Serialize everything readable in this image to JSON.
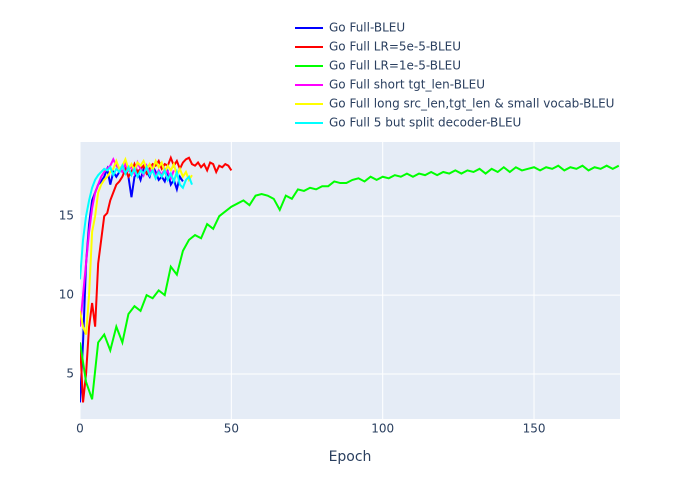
{
  "chart_data": {
    "type": "line",
    "x_label": "Epoch",
    "xlim": [
      0,
      178.4
    ],
    "ylim": [
      2.15,
      19.7
    ],
    "xticks": [
      0,
      50,
      100,
      150
    ],
    "yticks": [
      5,
      10,
      15
    ],
    "grid": true,
    "legend": "top",
    "series": [
      {
        "name": "Go Full-BLEU",
        "color": "#0000ff",
        "x": [
          0,
          1,
          2,
          3,
          4,
          5,
          6,
          7,
          8,
          9,
          10,
          11,
          12,
          13,
          14,
          15,
          16,
          17,
          18,
          19,
          20,
          21,
          22,
          23,
          24,
          25,
          26,
          27,
          28,
          29,
          30,
          31,
          32,
          33,
          34
        ],
        "values": [
          3.2,
          7,
          12,
          14.5,
          16,
          16.5,
          17,
          17.2,
          17.5,
          18,
          17,
          17.8,
          17.5,
          17.8,
          18.2,
          18,
          17.5,
          16.2,
          17.5,
          17.8,
          17.3,
          18,
          17.8,
          17.5,
          18.2,
          17.8,
          17.3,
          17.5,
          17.2,
          17.8,
          17,
          17.3,
          16.7,
          17.5,
          17.2
        ]
      },
      {
        "name": "Go Full LR=5e-5-BLEU",
        "color": "#ff0000",
        "x": [
          0,
          1,
          2,
          3,
          4,
          5,
          6,
          7,
          8,
          9,
          10,
          11,
          12,
          13,
          14,
          15,
          16,
          17,
          18,
          19,
          20,
          21,
          22,
          23,
          24,
          25,
          26,
          27,
          28,
          29,
          30,
          31,
          32,
          33,
          34,
          35,
          36,
          37,
          38,
          39,
          40,
          41,
          42,
          43,
          44,
          45,
          46,
          47,
          48,
          49,
          50
        ],
        "values": [
          7,
          3.2,
          5,
          8,
          9.5,
          8,
          12,
          13.5,
          15,
          15.2,
          16,
          16.5,
          17,
          17.2,
          17.5,
          18,
          17.5,
          17.8,
          18.3,
          17.8,
          18,
          18.2,
          17.7,
          18,
          18.3,
          18.2,
          18.5,
          18,
          18.3,
          18.2,
          18.7,
          18.2,
          18.5,
          18,
          18.4,
          18.6,
          18.7,
          18.3,
          18.2,
          18.4,
          18.1,
          18.3,
          17.9,
          18.4,
          18.3,
          17.8,
          18.2,
          18.1,
          18.3,
          18.2,
          17.9
        ]
      },
      {
        "name": "Go Full LR=1e-5-BLEU",
        "color": "#00ff00",
        "x": [
          0,
          2,
          4,
          6,
          8,
          10,
          12,
          14,
          16,
          18,
          20,
          22,
          24,
          26,
          28,
          30,
          32,
          34,
          36,
          38,
          40,
          42,
          44,
          46,
          48,
          50,
          52,
          54,
          56,
          58,
          60,
          62,
          64,
          66,
          68,
          70,
          72,
          74,
          76,
          78,
          80,
          82,
          84,
          86,
          88,
          90,
          92,
          94,
          96,
          98,
          100,
          102,
          104,
          106,
          108,
          110,
          112,
          114,
          116,
          118,
          120,
          122,
          124,
          126,
          128,
          130,
          132,
          134,
          136,
          138,
          140,
          142,
          144,
          146,
          148,
          150,
          152,
          154,
          156,
          158,
          160,
          162,
          164,
          166,
          168,
          170,
          172,
          174,
          176,
          178
        ],
        "values": [
          7,
          4.5,
          3.4,
          7,
          7.5,
          6.5,
          8,
          7,
          8.8,
          9.3,
          9,
          10,
          9.8,
          10.3,
          10,
          11.8,
          11.3,
          12.8,
          13.5,
          13.8,
          13.6,
          14.5,
          14.2,
          15,
          15.3,
          15.6,
          15.8,
          16,
          15.7,
          16.3,
          16.4,
          16.3,
          16.1,
          15.4,
          16.3,
          16.1,
          16.7,
          16.6,
          16.8,
          16.7,
          16.9,
          16.9,
          17.2,
          17.1,
          17.1,
          17.3,
          17.4,
          17.2,
          17.5,
          17.3,
          17.5,
          17.4,
          17.6,
          17.5,
          17.7,
          17.5,
          17.7,
          17.6,
          17.8,
          17.6,
          17.8,
          17.7,
          17.9,
          17.7,
          17.9,
          17.8,
          18,
          17.7,
          18,
          17.8,
          18.1,
          17.8,
          18.1,
          17.9,
          18,
          18.1,
          17.9,
          18.1,
          18,
          18.2,
          17.9,
          18.1,
          18,
          18.2,
          17.9,
          18.1,
          18,
          18.2,
          18,
          18.2
        ]
      },
      {
        "name": "Go Full short tgt_len-BLEU",
        "color": "#ff00ff",
        "x": [
          0,
          1,
          2,
          3,
          4,
          5,
          6,
          7,
          8,
          9,
          10,
          11,
          12,
          13,
          14,
          15,
          16,
          17,
          18,
          19,
          20,
          21,
          22,
          23,
          24,
          25,
          26,
          27,
          28,
          29,
          30,
          31
        ],
        "values": [
          8,
          10,
          12,
          14,
          15.5,
          16.5,
          17,
          17.5,
          17.8,
          18,
          18.2,
          18.6,
          18.2,
          18,
          17.8,
          18.3,
          17.9,
          18.2,
          17.7,
          18.4,
          18,
          17.6,
          18.2,
          17.8,
          18.1,
          17.5,
          17.9,
          17.6,
          18,
          17.8,
          17.4,
          17.9
        ]
      },
      {
        "name": "Go Full long src_len,tgt_len & small vocab-BLEU",
        "color": "#ffff00",
        "x": [
          0,
          1,
          2,
          3,
          4,
          5,
          6,
          7,
          8,
          9,
          10,
          11,
          12,
          13,
          14,
          15,
          16,
          17,
          18,
          19,
          20,
          21,
          22,
          23,
          24,
          25,
          26,
          27,
          28,
          29,
          30,
          31,
          32,
          33,
          34,
          35,
          36,
          37
        ],
        "values": [
          9,
          8,
          7.5,
          10,
          14,
          15,
          16.5,
          17,
          17.3,
          17.5,
          17.8,
          18,
          18.5,
          18,
          18.2,
          18.6,
          18,
          18.3,
          17.9,
          18.4,
          18.2,
          18.5,
          18,
          18.3,
          17.9,
          18.5,
          18.1,
          18.4,
          17.8,
          18.2,
          17.9,
          18.3,
          17.6,
          18,
          17.5,
          17.8,
          17.3,
          17.6
        ]
      },
      {
        "name": "Go Full 5 but split decoder-BLEU",
        "color": "#00ffff",
        "x": [
          0,
          1,
          2,
          3,
          4,
          5,
          6,
          7,
          8,
          9,
          10,
          11,
          12,
          13,
          14,
          15,
          16,
          17,
          18,
          19,
          20,
          21,
          22,
          23,
          24,
          25,
          26,
          27,
          28,
          29,
          30,
          31,
          32,
          33,
          34,
          35,
          36,
          37
        ],
        "values": [
          11,
          13.5,
          15,
          16,
          16.8,
          17.3,
          17.6,
          17.8,
          18,
          17.9,
          18.1,
          17.6,
          18,
          17.8,
          18.2,
          17.7,
          18.1,
          17.6,
          18,
          17.5,
          17.9,
          17.7,
          18.1,
          17.6,
          17.9,
          17.4,
          17.8,
          17.5,
          17.9,
          17.3,
          17.7,
          17.2,
          17.8,
          17,
          16.8,
          17.3,
          17.5,
          17
        ]
      }
    ]
  }
}
